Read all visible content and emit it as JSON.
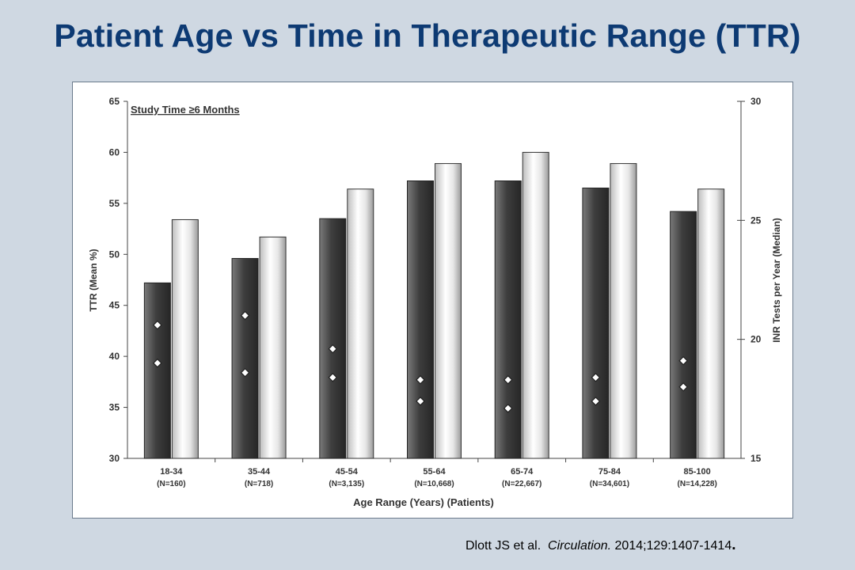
{
  "slide": {
    "title": "Patient Age vs Time in Therapeutic Range (TTR)"
  },
  "citation": {
    "authors": "Dlott JS et al.",
    "journal": "Circulation.",
    "details": "2014;129:1407-1414",
    "end": "."
  },
  "colors": {
    "title": "#0d3a73",
    "background": "#cfd8e2",
    "dark_bar": "#4a4a4a",
    "light_bar": "#f2f2f2"
  },
  "chart_data": {
    "type": "bar",
    "annotation": "Study Time ≥6 Months",
    "xlabel": "Age Range (Years) (Patients)",
    "ylabel": "TTR (Mean %)",
    "y2label": "INR Tests per Year (Median)",
    "ylim": [
      30,
      65
    ],
    "yticks": [
      "30",
      "35",
      "40",
      "45",
      "50",
      "55",
      "60",
      "65"
    ],
    "y2lim": [
      15,
      30
    ],
    "y2ticks": [
      "15",
      "20",
      "25",
      "30"
    ],
    "categories": [
      "18-34",
      "35-44",
      "45-54",
      "55-64",
      "65-74",
      "75-84",
      "85-100"
    ],
    "category_counts": [
      "(N=160)",
      "(N=718)",
      "(N=3,135)",
      "(N=10,668)",
      "(N=22,667)",
      "(N=34,601)",
      "(N=14,228)"
    ],
    "series": [
      {
        "style": "dark",
        "axis": "left",
        "values": [
          47.2,
          49.6,
          53.5,
          57.2,
          57.2,
          56.5,
          54.2
        ]
      },
      {
        "style": "light",
        "axis": "left",
        "values": [
          53.4,
          51.7,
          56.4,
          58.9,
          60.0,
          58.9,
          56.4
        ]
      },
      {
        "style": "diamond",
        "axis": "right",
        "values": [
          20.6,
          21.0,
          19.6,
          18.3,
          18.3,
          18.4,
          19.1
        ]
      },
      {
        "style": "diamond",
        "axis": "right",
        "values": [
          19.0,
          18.6,
          18.4,
          17.4,
          17.1,
          17.4,
          18.0
        ]
      }
    ],
    "grid": false,
    "legend": "none"
  }
}
